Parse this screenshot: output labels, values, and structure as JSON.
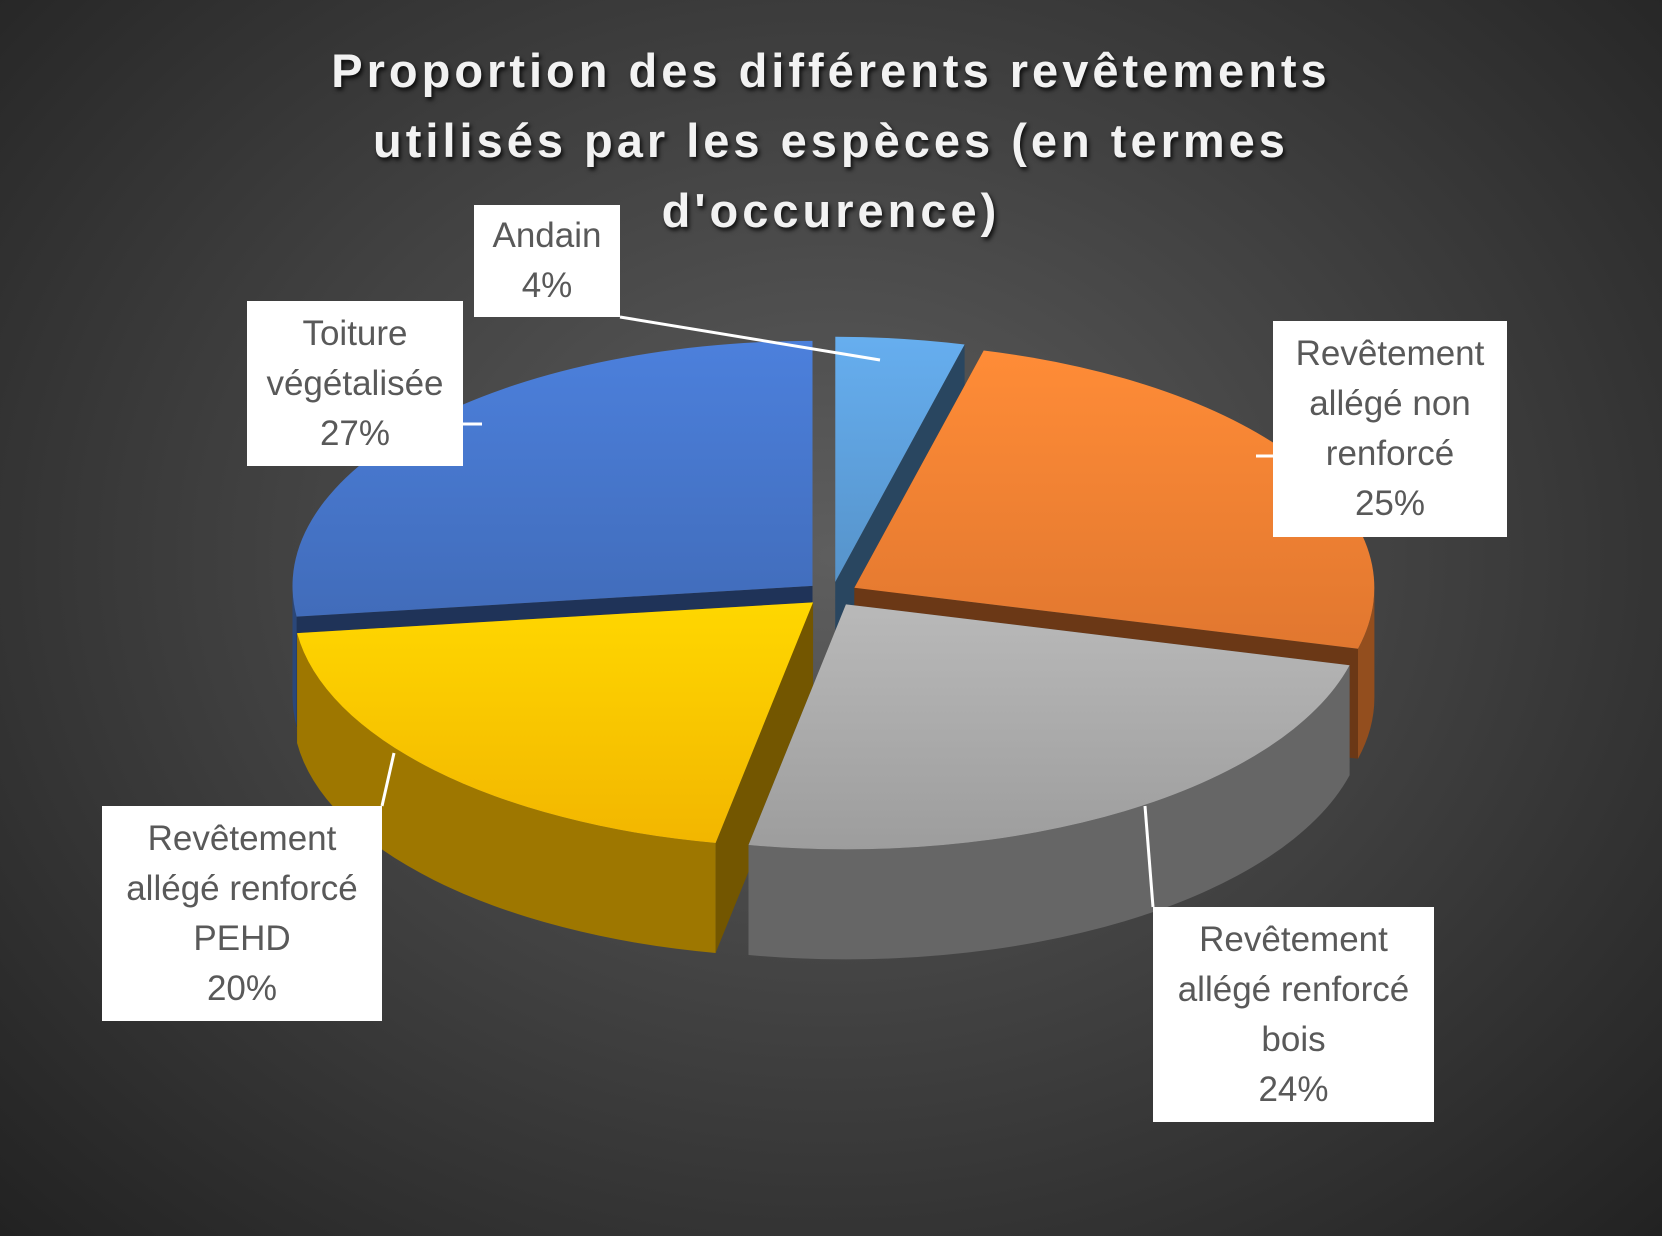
{
  "chart_data": {
    "type": "pie3d",
    "title": "Proportion des différents revêtements utilisés par les espèces (en termes d'occurence)",
    "categories": [
      "Andain",
      "Revêtement allégé non renforcé",
      "Revêtement allégé renforcé bois",
      "Revêtement allégé renforcé PEHD",
      "Toiture végétalisée"
    ],
    "values": [
      4,
      25,
      24,
      20,
      27
    ],
    "value_labels": [
      "4%",
      "25%",
      "24%",
      "20%",
      "27%"
    ],
    "colors": [
      "#5b9bd5",
      "#ed7d31",
      "#a5a5a5",
      "#ffc000",
      "#4472c4"
    ]
  }
}
